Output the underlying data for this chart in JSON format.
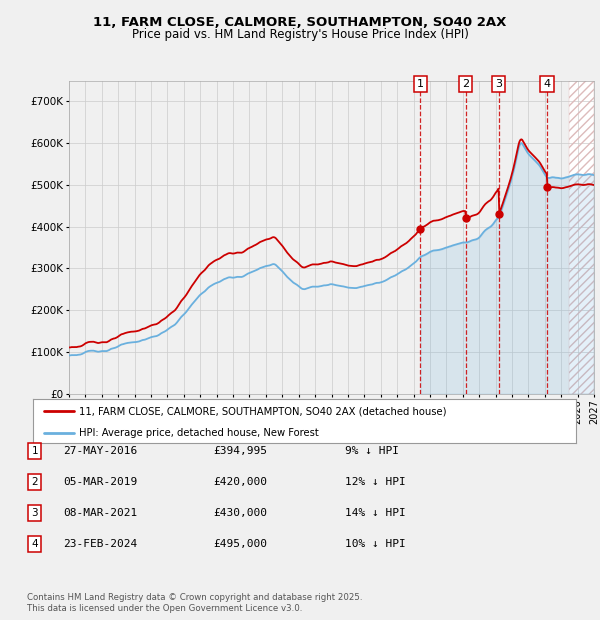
{
  "title_line1": "11, FARM CLOSE, CALMORE, SOUTHAMPTON, SO40 2AX",
  "title_line2": "Price paid vs. HM Land Registry's House Price Index (HPI)",
  "hpi_color": "#6ab0de",
  "hpi_fill_color": "#c8dff0",
  "price_color": "#cc0000",
  "background_color": "#f0f0f0",
  "chart_bg": "#f0f0f0",
  "grid_color": "#cccccc",
  "sale_dates": [
    2016.41,
    2019.17,
    2021.18,
    2024.14
  ],
  "sale_prices": [
    394995,
    420000,
    430000,
    495000
  ],
  "sale_labels": [
    "1",
    "2",
    "3",
    "4"
  ],
  "vline_color": "#cc0000",
  "legend_label_price": "11, FARM CLOSE, CALMORE, SOUTHAMPTON, SO40 2AX (detached house)",
  "legend_label_hpi": "HPI: Average price, detached house, New Forest",
  "table_entries": [
    {
      "num": "1",
      "date": "27-MAY-2016",
      "price": "£394,995",
      "pct": "9% ↓ HPI"
    },
    {
      "num": "2",
      "date": "05-MAR-2019",
      "price": "£420,000",
      "pct": "12% ↓ HPI"
    },
    {
      "num": "3",
      "date": "08-MAR-2021",
      "price": "£430,000",
      "pct": "14% ↓ HPI"
    },
    {
      "num": "4",
      "date": "23-FEB-2024",
      "price": "£495,000",
      "pct": "10% ↓ HPI"
    }
  ],
  "footnote": "Contains HM Land Registry data © Crown copyright and database right 2025.\nThis data is licensed under the Open Government Licence v3.0.",
  "ylim": [
    0,
    750000
  ],
  "xlim_start": 1995,
  "xlim_end": 2027
}
